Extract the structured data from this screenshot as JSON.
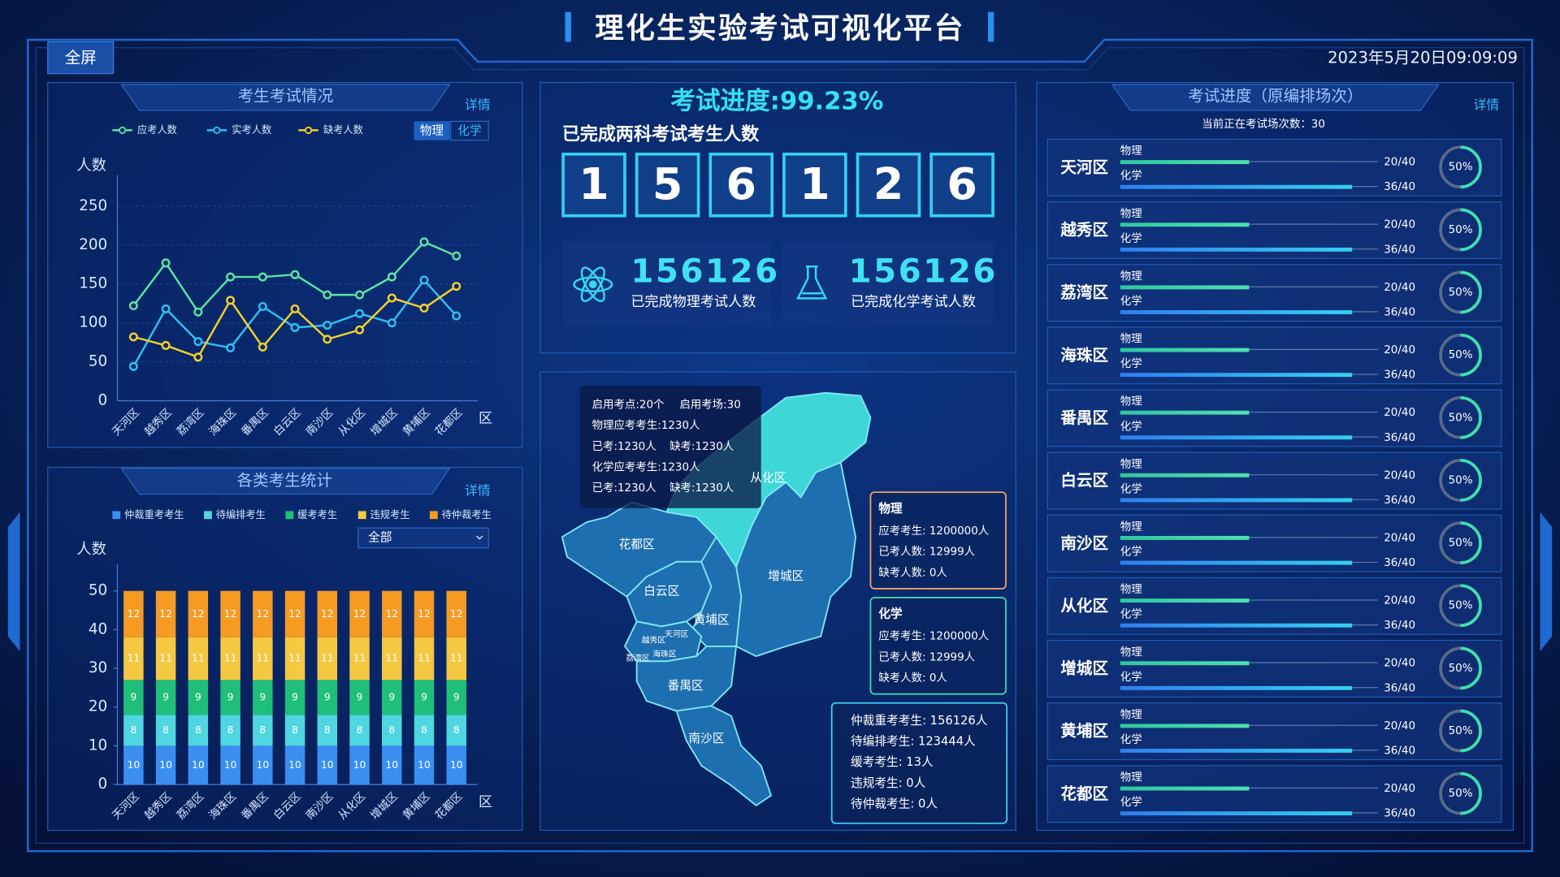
{
  "header": {
    "title": "理化生实验考试可视化平台",
    "fullscreen": "全屏",
    "datetime": "2023年5月20日09:09:09"
  },
  "chart_data": [
    {
      "type": "line",
      "title": "考生考试情况",
      "y_label": "人数",
      "x_label": "区",
      "categories": [
        "天河区",
        "越秀区",
        "荔湾区",
        "海珠区",
        "番禺区",
        "白云区",
        "南沙区",
        "从化区",
        "增城区",
        "黄埔区",
        "花都区"
      ],
      "series": [
        {
          "name": "应考人数",
          "color": "#5de3a6",
          "values": [
            122,
            177,
            114,
            159,
            159,
            162,
            136,
            136,
            159,
            204,
            186
          ]
        },
        {
          "name": "实考人数",
          "color": "#2fc0f5",
          "values": [
            44,
            118,
            76,
            68,
            121,
            94,
            97,
            112,
            100,
            155,
            109
          ]
        },
        {
          "name": "缺考人数",
          "color": "#f3d02c",
          "values": [
            82,
            71,
            56,
            129,
            69,
            118,
            79,
            91,
            132,
            119,
            147
          ]
        }
      ],
      "ylim": [
        0,
        290
      ],
      "yticks": [
        0,
        50,
        100,
        150,
        200,
        250
      ],
      "grid": true,
      "legend": "top"
    },
    {
      "type": "bar",
      "stacked": true,
      "title": "各类考生统计",
      "y_label": "人数",
      "x_label": "区",
      "categories": [
        "天河区",
        "越秀区",
        "荔湾区",
        "海珠区",
        "番禺区",
        "白云区",
        "南沙区",
        "从化区",
        "增城区",
        "黄埔区",
        "花都区"
      ],
      "series": [
        {
          "name": "仲裁重考考生",
          "color": "#3a8ef0",
          "values": [
            10,
            10,
            10,
            10,
            10,
            10,
            10,
            10,
            10,
            10,
            10
          ]
        },
        {
          "name": "待编排考生",
          "color": "#4fd6e0",
          "values": [
            8,
            8,
            8,
            8,
            8,
            8,
            8,
            8,
            8,
            8,
            8
          ]
        },
        {
          "name": "缓考考生",
          "color": "#1fbf7a",
          "values": [
            9,
            9,
            9,
            9,
            9,
            9,
            9,
            9,
            9,
            9,
            9
          ]
        },
        {
          "name": "违规考生",
          "color": "#f5c842",
          "values": [
            11,
            11,
            11,
            11,
            11,
            11,
            11,
            11,
            11,
            11,
            11
          ]
        },
        {
          "name": "待仲裁考生",
          "color": "#f59a23",
          "values": [
            12,
            12,
            12,
            12,
            12,
            12,
            12,
            12,
            12,
            12,
            12
          ]
        }
      ],
      "ylim": [
        0,
        57
      ],
      "yticks": [
        0,
        10,
        20,
        30,
        40,
        50
      ],
      "grid": false,
      "legend": "top"
    }
  ],
  "exam_status_panel": {
    "detail": "详情",
    "tabs": [
      "物理",
      "化学"
    ]
  },
  "candidate_stats_panel": {
    "detail": "详情",
    "filter": "全部"
  },
  "overview": {
    "progress": "考试进度:99.23%",
    "subtitle": "已完成两科考试考生人数",
    "digits": [
      "1",
      "5",
      "6",
      "1",
      "2",
      "6"
    ],
    "cards": [
      {
        "value": 156126,
        "label": "已完成物理考试人数"
      },
      {
        "value": 156126,
        "label": "已完成化学考试人数"
      }
    ]
  },
  "map": {
    "districts": [
      "从化区",
      "花都区",
      "增城区",
      "白云区",
      "黄埔区",
      "天河区",
      "越秀区",
      "荔湾区",
      "海珠区",
      "番禺区",
      "南沙区"
    ],
    "tooltip": [
      [
        "启用考点:20个",
        "启用考场:30"
      ],
      [
        "物理应考考生:1230人"
      ],
      [
        "已考:1230人",
        "缺考:1230人"
      ],
      [
        "化学应考考生:1230人"
      ],
      [
        "已考:1230人",
        "缺考:1230人"
      ]
    ],
    "physics_box": {
      "title": "物理",
      "lines": [
        "应考考生: 1200000人",
        "已考人数: 12999人",
        "缺考人数: 0人"
      ]
    },
    "chemistry_box": {
      "title": "化学",
      "lines": [
        "应考考生: 1200000人",
        "已考人数: 12999人",
        "缺考人数: 0人"
      ]
    },
    "summary_box": {
      "lines": [
        "仲裁重考考生: 156126人",
        "待编排考生: 123444人",
        "缓考考生: 13人",
        "违规考生: 0人",
        "待仲裁考生: 0人"
      ]
    }
  },
  "progress_panel": {
    "title": "考试进度（原编排场次）",
    "detail": "详情",
    "subtitle": "当前正在考试场次数：30",
    "subjects": [
      "物理",
      "化学"
    ],
    "rows": [
      {
        "district": "天河区",
        "physics": {
          "done": 20,
          "total": 40,
          "label": "20/40"
        },
        "chemistry": {
          "done": 36,
          "total": 40,
          "label": "36/40"
        },
        "completion": {
          "value": 50,
          "label": "50%"
        }
      },
      {
        "district": "越秀区",
        "physics": {
          "done": 20,
          "total": 40,
          "label": "20/40"
        },
        "chemistry": {
          "done": 36,
          "total": 40,
          "label": "36/40"
        },
        "completion": {
          "value": 50,
          "label": "50%"
        }
      },
      {
        "district": "荔湾区",
        "physics": {
          "done": 20,
          "total": 40,
          "label": "20/40"
        },
        "chemistry": {
          "done": 36,
          "total": 40,
          "label": "36/40"
        },
        "completion": {
          "value": 50,
          "label": "50%"
        }
      },
      {
        "district": "海珠区",
        "physics": {
          "done": 20,
          "total": 40,
          "label": "20/40"
        },
        "chemistry": {
          "done": 36,
          "total": 40,
          "label": "36/40"
        },
        "completion": {
          "value": 50,
          "label": "50%"
        }
      },
      {
        "district": "番禺区",
        "physics": {
          "done": 20,
          "total": 40,
          "label": "20/40"
        },
        "chemistry": {
          "done": 36,
          "total": 40,
          "label": "36/40"
        },
        "completion": {
          "value": 50,
          "label": "50%"
        }
      },
      {
        "district": "白云区",
        "physics": {
          "done": 20,
          "total": 40,
          "label": "20/40"
        },
        "chemistry": {
          "done": 36,
          "total": 40,
          "label": "36/40"
        },
        "completion": {
          "value": 50,
          "label": "50%"
        }
      },
      {
        "district": "南沙区",
        "physics": {
          "done": 20,
          "total": 40,
          "label": "20/40"
        },
        "chemistry": {
          "done": 36,
          "total": 40,
          "label": "36/40"
        },
        "completion": {
          "value": 50,
          "label": "50%"
        }
      },
      {
        "district": "从化区",
        "physics": {
          "done": 20,
          "total": 40,
          "label": "20/40"
        },
        "chemistry": {
          "done": 36,
          "total": 40,
          "label": "36/40"
        },
        "completion": {
          "value": 50,
          "label": "50%"
        }
      },
      {
        "district": "增城区",
        "physics": {
          "done": 20,
          "total": 40,
          "label": "20/40"
        },
        "chemistry": {
          "done": 36,
          "total": 40,
          "label": "36/40"
        },
        "completion": {
          "value": 50,
          "label": "50%"
        }
      },
      {
        "district": "黄埔区",
        "physics": {
          "done": 20,
          "total": 40,
          "label": "20/40"
        },
        "chemistry": {
          "done": 36,
          "total": 40,
          "label": "36/40"
        },
        "completion": {
          "value": 50,
          "label": "50%"
        }
      },
      {
        "district": "花都区",
        "physics": {
          "done": 20,
          "total": 40,
          "label": "20/40"
        },
        "chemistry": {
          "done": 36,
          "total": 40,
          "label": "36/40"
        },
        "completion": {
          "value": 50,
          "label": "50%"
        }
      }
    ]
  }
}
